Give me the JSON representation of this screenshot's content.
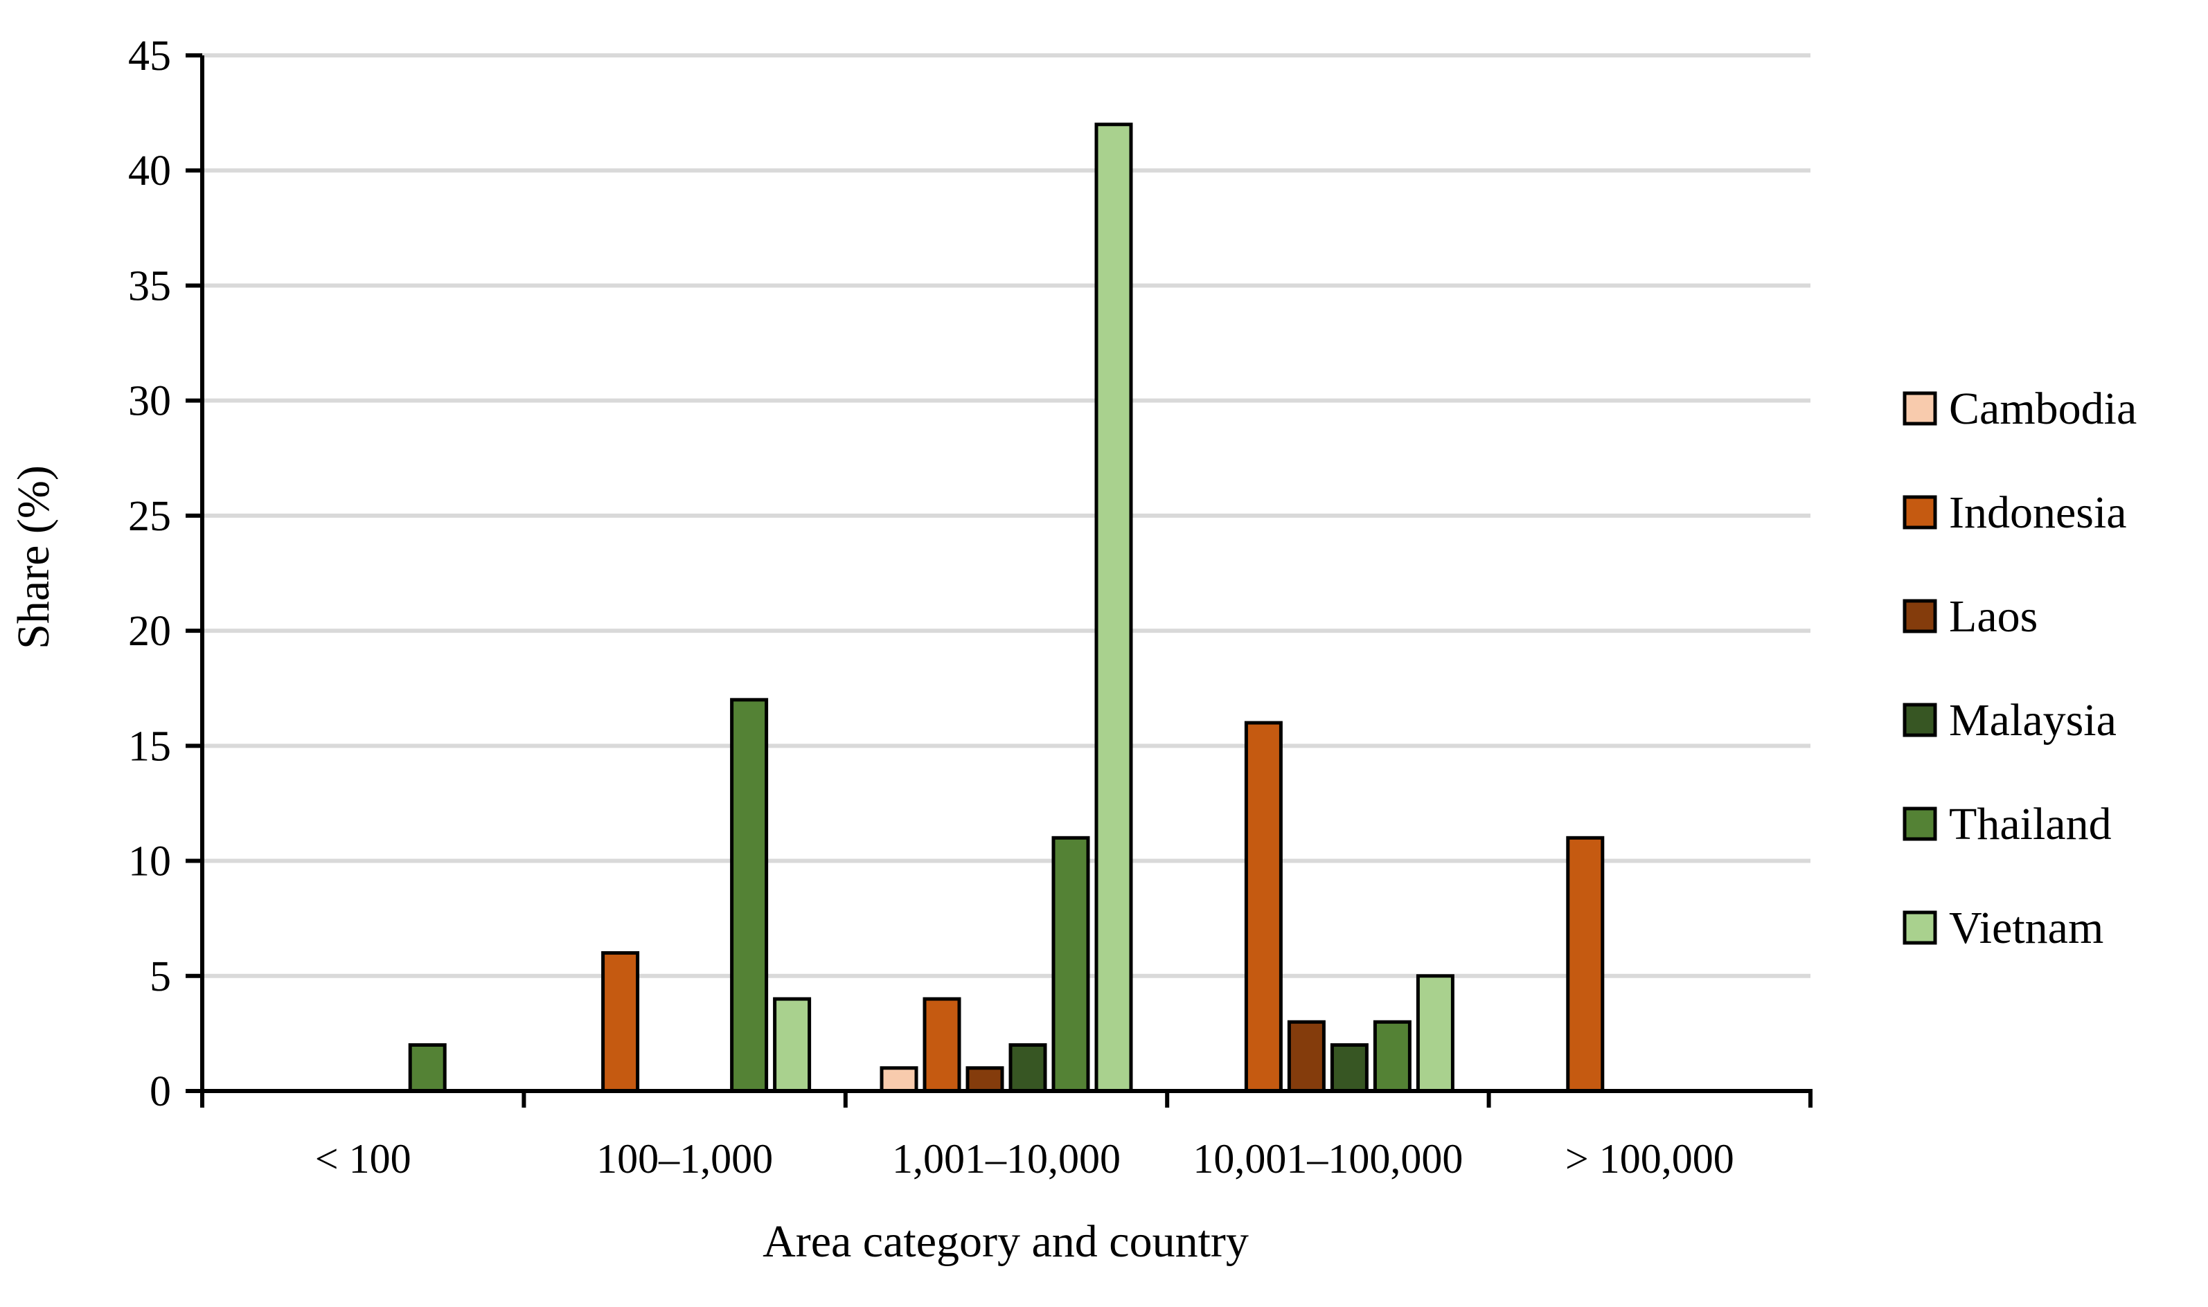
{
  "chart_data": {
    "type": "bar",
    "title": "",
    "xlabel": "Area category and country",
    "ylabel": "Share (%)",
    "ylim": [
      0,
      45
    ],
    "yticks": [
      0,
      5,
      10,
      15,
      20,
      25,
      30,
      35,
      40,
      45
    ],
    "grid": "horizontal",
    "legend_position": "right",
    "categories": [
      "< 100",
      "100–1,000",
      "1,001–10,000",
      "10,001–100,000",
      "> 100,000"
    ],
    "series": [
      {
        "name": "Cambodia",
        "color": "#f8cbad",
        "values": [
          0,
          0,
          1,
          0,
          0
        ]
      },
      {
        "name": "Indonesia",
        "color": "#c55a11",
        "values": [
          0,
          6,
          4,
          16,
          11
        ]
      },
      {
        "name": "Laos",
        "color": "#843c0c",
        "values": [
          0,
          0,
          1,
          3,
          0
        ]
      },
      {
        "name": "Malaysia",
        "color": "#375623",
        "values": [
          0,
          0,
          2,
          2,
          0
        ]
      },
      {
        "name": "Thailand",
        "color": "#548235",
        "values": [
          2,
          17,
          11,
          3,
          0
        ]
      },
      {
        "name": "Vietnam",
        "color": "#a9d18e",
        "values": [
          0,
          4,
          42,
          5,
          0
        ]
      }
    ]
  }
}
